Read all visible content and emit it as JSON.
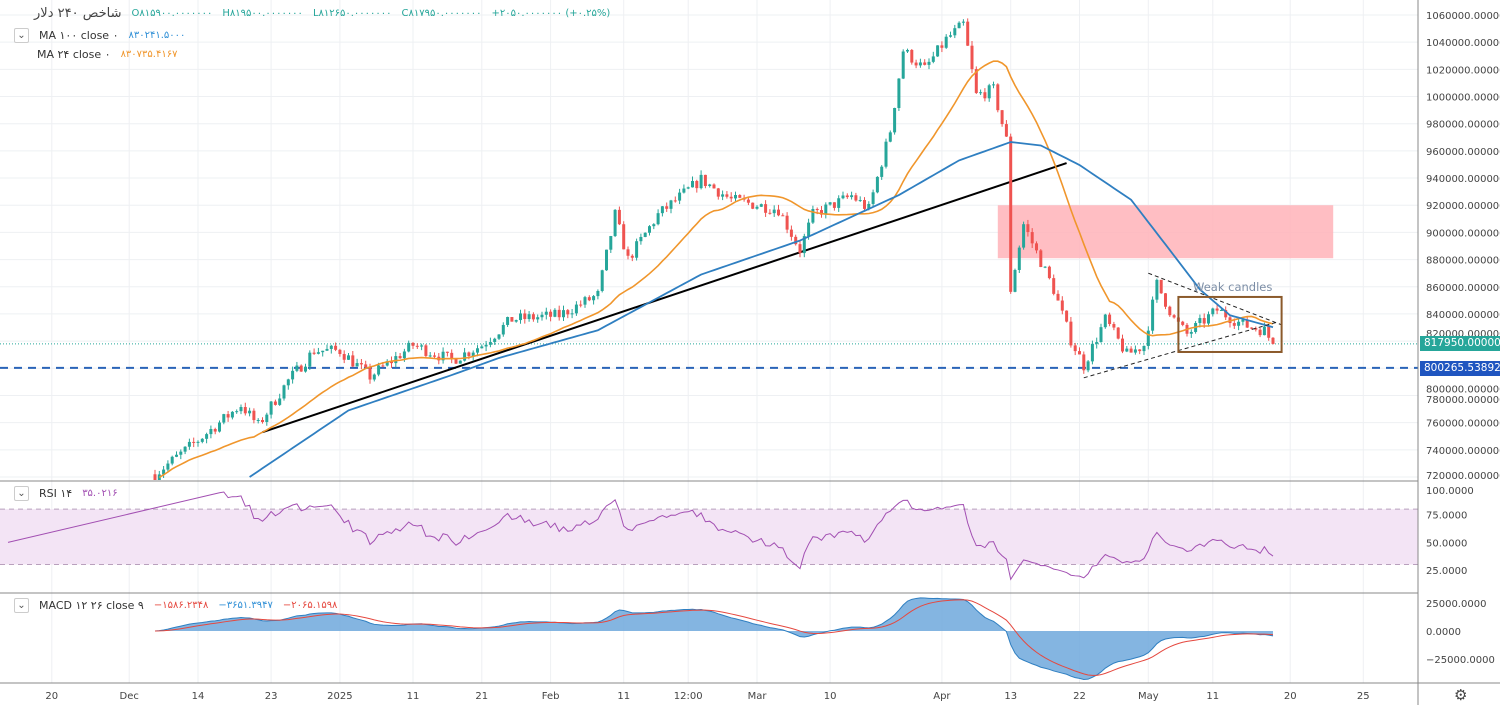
{
  "header": {
    "title": "شاخص ۲۴۰ دلار",
    "open": "O۸۱۵۹۰۰.۰۰۰۰۰۰۰",
    "high": "H۸۱۹۵۰۰.۰۰۰۰۰۰۰",
    "low": "L۸۱۲۶۵۰.۰۰۰۰۰۰۰",
    "close": "C۸۱۷۹۵۰.۰۰۰۰۰۰۰",
    "change": "+۲۰۵۰.۰۰۰۰۰۰۰ (+۰.۲۵%)"
  },
  "indicators": {
    "ma100": {
      "label": "MA ۱۰۰ close ۰",
      "value": "۸۳۰۲۴۱.۵۰۰۰"
    },
    "ma24": {
      "label": "MA ۲۴ close ۰",
      "value": "۸۳۰۷۳۵.۴۱۶۷"
    },
    "rsi": {
      "label": "RSI ۱۴",
      "value": "۳۵.۰۲۱۶"
    },
    "macd": {
      "label": "MACD ۱۲ ۲۶ close ۹",
      "hist": "−۱۵۸۶.۲۳۴۸",
      "macd": "−۳۶۵۱.۳۹۴۷",
      "signal": "−۲۰۶۵.۱۵۹۸"
    }
  },
  "colors": {
    "up": "#26a69a",
    "down": "#ef5350",
    "ma100": "#2f7fc1",
    "ma24": "#f0962c",
    "rsi": "#a24fb2",
    "zone": "#ffb3b8",
    "support": "#2a64b8",
    "last": "#26a69a"
  },
  "icons": {
    "collapse": "chevron-down-icon",
    "settings": "gear-icon"
  },
  "chevron_glyph": "⌄",
  "gear_glyph": "⚙",
  "price_tags": {
    "last": "817950.0000000",
    "support": "800265.5389269"
  },
  "annotation": "Weak candles",
  "chart_data": {
    "type": "candlestick",
    "candle_count": 261,
    "close_path": [
      [
        0,
        722000
      ],
      [
        10,
        747000
      ],
      [
        20,
        773000
      ],
      [
        24,
        758000
      ],
      [
        31,
        791000
      ],
      [
        37,
        813000
      ],
      [
        43,
        813000
      ],
      [
        50,
        794000
      ],
      [
        60,
        817000
      ],
      [
        69,
        806000
      ],
      [
        76,
        817000
      ],
      [
        83,
        836000
      ],
      [
        94,
        839000
      ],
      [
        103,
        854000
      ],
      [
        107,
        913000
      ],
      [
        110,
        880000
      ],
      [
        117,
        913000
      ],
      [
        127,
        939000
      ],
      [
        134,
        924000
      ],
      [
        145,
        917000
      ],
      [
        150,
        887000
      ],
      [
        153,
        913000
      ],
      [
        162,
        927000
      ],
      [
        166,
        917000
      ],
      [
        171,
        975000
      ],
      [
        174,
        1034000
      ],
      [
        179,
        1020000
      ],
      [
        184,
        1042000
      ],
      [
        188,
        1053000
      ],
      [
        191,
        1001000
      ],
      [
        195,
        1005000
      ],
      [
        198,
        968000
      ],
      [
        199,
        858000
      ],
      [
        202,
        906000
      ],
      [
        209,
        858000
      ],
      [
        213,
        821000
      ],
      [
        216,
        802000
      ],
      [
        221,
        836000
      ],
      [
        226,
        810000
      ],
      [
        230,
        817000
      ],
      [
        233,
        862000
      ],
      [
        237,
        836000
      ],
      [
        240,
        825000
      ],
      [
        247,
        843000
      ],
      [
        253,
        832000
      ],
      [
        258,
        828000
      ],
      [
        260,
        817950
      ]
    ],
    "ma100_path": [
      [
        22,
        720000
      ],
      [
        45,
        769000
      ],
      [
        69,
        795000
      ],
      [
        80,
        807600
      ],
      [
        103,
        828000
      ],
      [
        127,
        869000
      ],
      [
        150,
        894000
      ],
      [
        173,
        927500
      ],
      [
        187,
        953000
      ],
      [
        199,
        966500
      ],
      [
        206,
        964000
      ],
      [
        215,
        949600
      ],
      [
        227,
        924000
      ],
      [
        236,
        887000
      ],
      [
        243,
        858000
      ],
      [
        250,
        839000
      ],
      [
        260,
        830241.5
      ]
    ],
    "trendline": [
      [
        25,
        753000
      ],
      [
        212,
        951000
      ]
    ],
    "wedge_upper": [
      [
        231,
        870000
      ],
      [
        262,
        832000
      ]
    ],
    "wedge_lower": [
      [
        216,
        793000
      ],
      [
        261,
        834000
      ]
    ],
    "resistance_zone": {
      "from_idx": 196,
      "to_idx": 274,
      "top": 920000,
      "bottom": 881000
    },
    "box": {
      "from_idx": 238,
      "to_idx": 262,
      "top": 852500,
      "bottom": 812000
    },
    "support_level": 800265.5389269,
    "last_price": 817950,
    "price_axis": {
      "min": 720000,
      "max": 1060000,
      "step": 20000,
      "ticks": [
        "1060000.0000000",
        "1040000.0000000",
        "1020000.0000000",
        "1000000.0000000",
        "980000.0000000",
        "960000.0000000",
        "940000.0000000",
        "920000.0000000",
        "900000.0000000",
        "880000.0000000",
        "860000.0000000",
        "840000.0000000",
        "820000.0000000",
        "800000.0000000",
        "780000.0000000",
        "760000.0000000",
        "740000.0000000",
        "720000.0000000"
      ]
    },
    "rsi_axis": {
      "ticks": [
        [
          "100.0000",
          100
        ],
        [
          "75.0000",
          75
        ],
        [
          "50.0000",
          50
        ],
        [
          "25.0000",
          25
        ]
      ],
      "upper": 80,
      "lower": 30
    },
    "macd_axis": {
      "ticks": [
        [
          "25000.0000",
          25000
        ],
        [
          "0.0000",
          0
        ],
        [
          "−25000.0000",
          -25000
        ]
      ]
    },
    "x_ticks": [
      [
        "20",
        -24
      ],
      [
        "Dec",
        -6
      ],
      [
        "14",
        10
      ],
      [
        "23",
        27
      ],
      [
        "2025",
        43
      ],
      [
        "11",
        60
      ],
      [
        "21",
        76
      ],
      [
        "Feb",
        92
      ],
      [
        "11",
        109
      ],
      [
        "12:00",
        124
      ],
      [
        "Mar",
        140
      ],
      [
        "10",
        157
      ],
      [
        "Apr",
        183
      ],
      [
        "13",
        199
      ],
      [
        "22",
        215
      ],
      [
        "May",
        231
      ],
      [
        "11",
        246
      ],
      [
        "20",
        264
      ],
      [
        "25",
        281
      ]
    ]
  }
}
